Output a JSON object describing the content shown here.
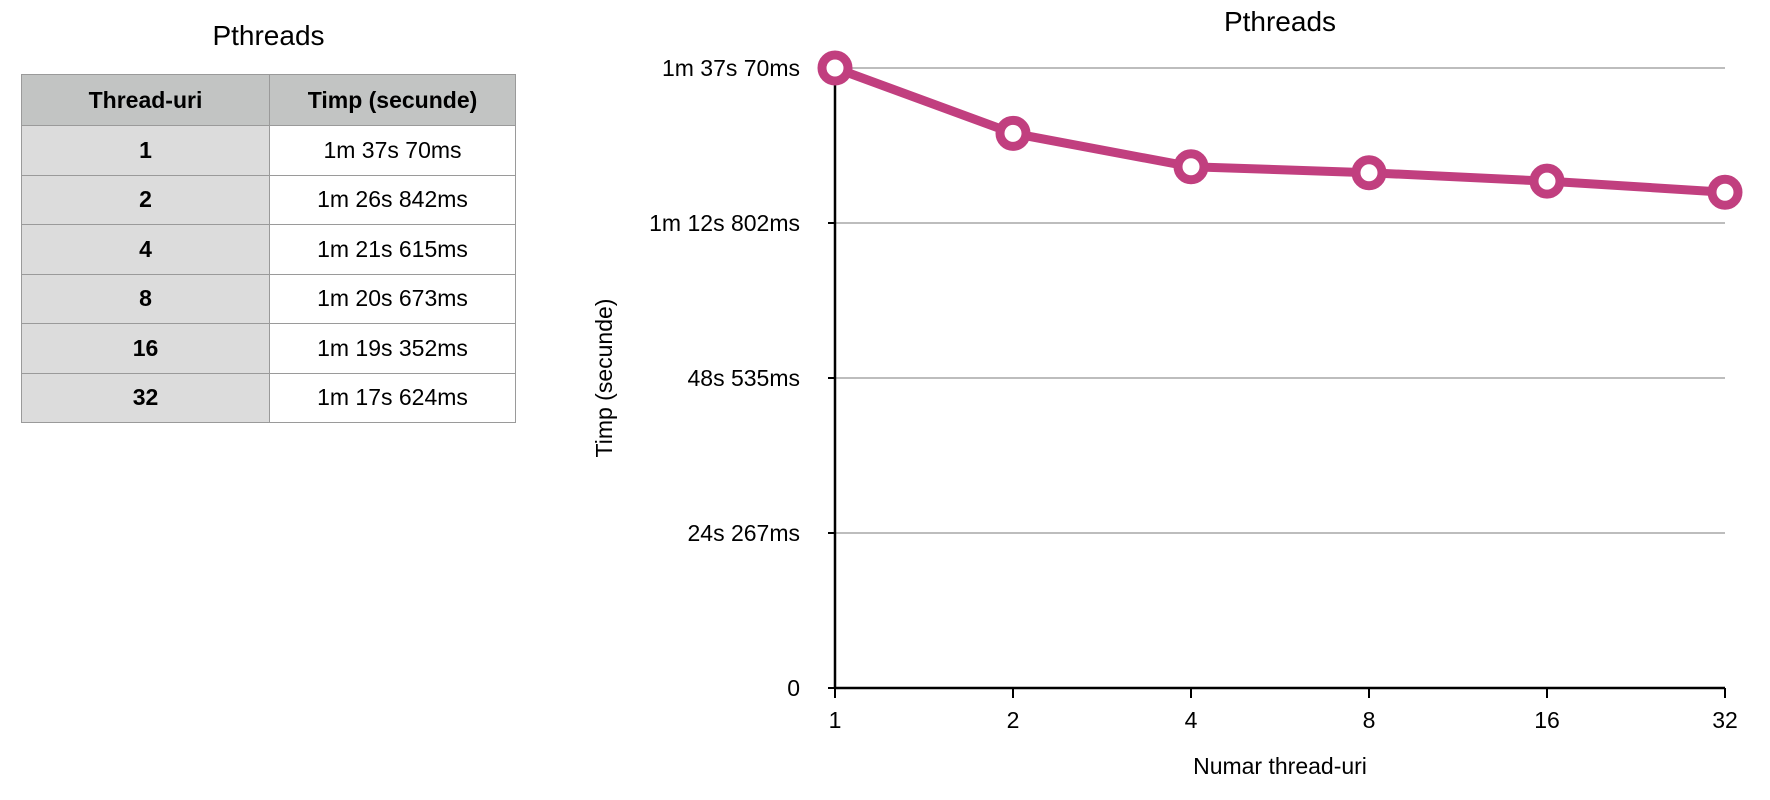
{
  "table": {
    "title": "Pthreads",
    "headers": [
      "Thread-uri",
      "Timp (secunde)"
    ],
    "rows": [
      {
        "threads": "1",
        "time": "1m 37s 70ms"
      },
      {
        "threads": "2",
        "time": "1m 26s 842ms"
      },
      {
        "threads": "4",
        "time": "1m 21s 615ms"
      },
      {
        "threads": "8",
        "time": "1m 20s 673ms"
      },
      {
        "threads": "16",
        "time": "1m 19s 352ms"
      },
      {
        "threads": "32",
        "time": "1m 17s 624ms"
      }
    ]
  },
  "chart_data": {
    "type": "line",
    "title": "Pthreads",
    "xlabel": "Numar thread-uri",
    "ylabel": "Timp (secunde)",
    "categories": [
      "1",
      "2",
      "4",
      "8",
      "16",
      "32"
    ],
    "series": [
      {
        "values": [
          97.07,
          86.842,
          81.615,
          80.673,
          79.352,
          77.624
        ],
        "color": "#c13f7f"
      }
    ],
    "ylim": [
      0,
      97.07
    ],
    "yticks": [
      {
        "value": 0,
        "label": "0"
      },
      {
        "value": 24.267,
        "label": "24s 267ms"
      },
      {
        "value": 48.535,
        "label": "48s 535ms"
      },
      {
        "value": 72.802,
        "label": "1m 12s 802ms"
      },
      {
        "value": 97.07,
        "label": "1m 37s 70ms"
      }
    ],
    "grid": true,
    "legend": "none"
  }
}
